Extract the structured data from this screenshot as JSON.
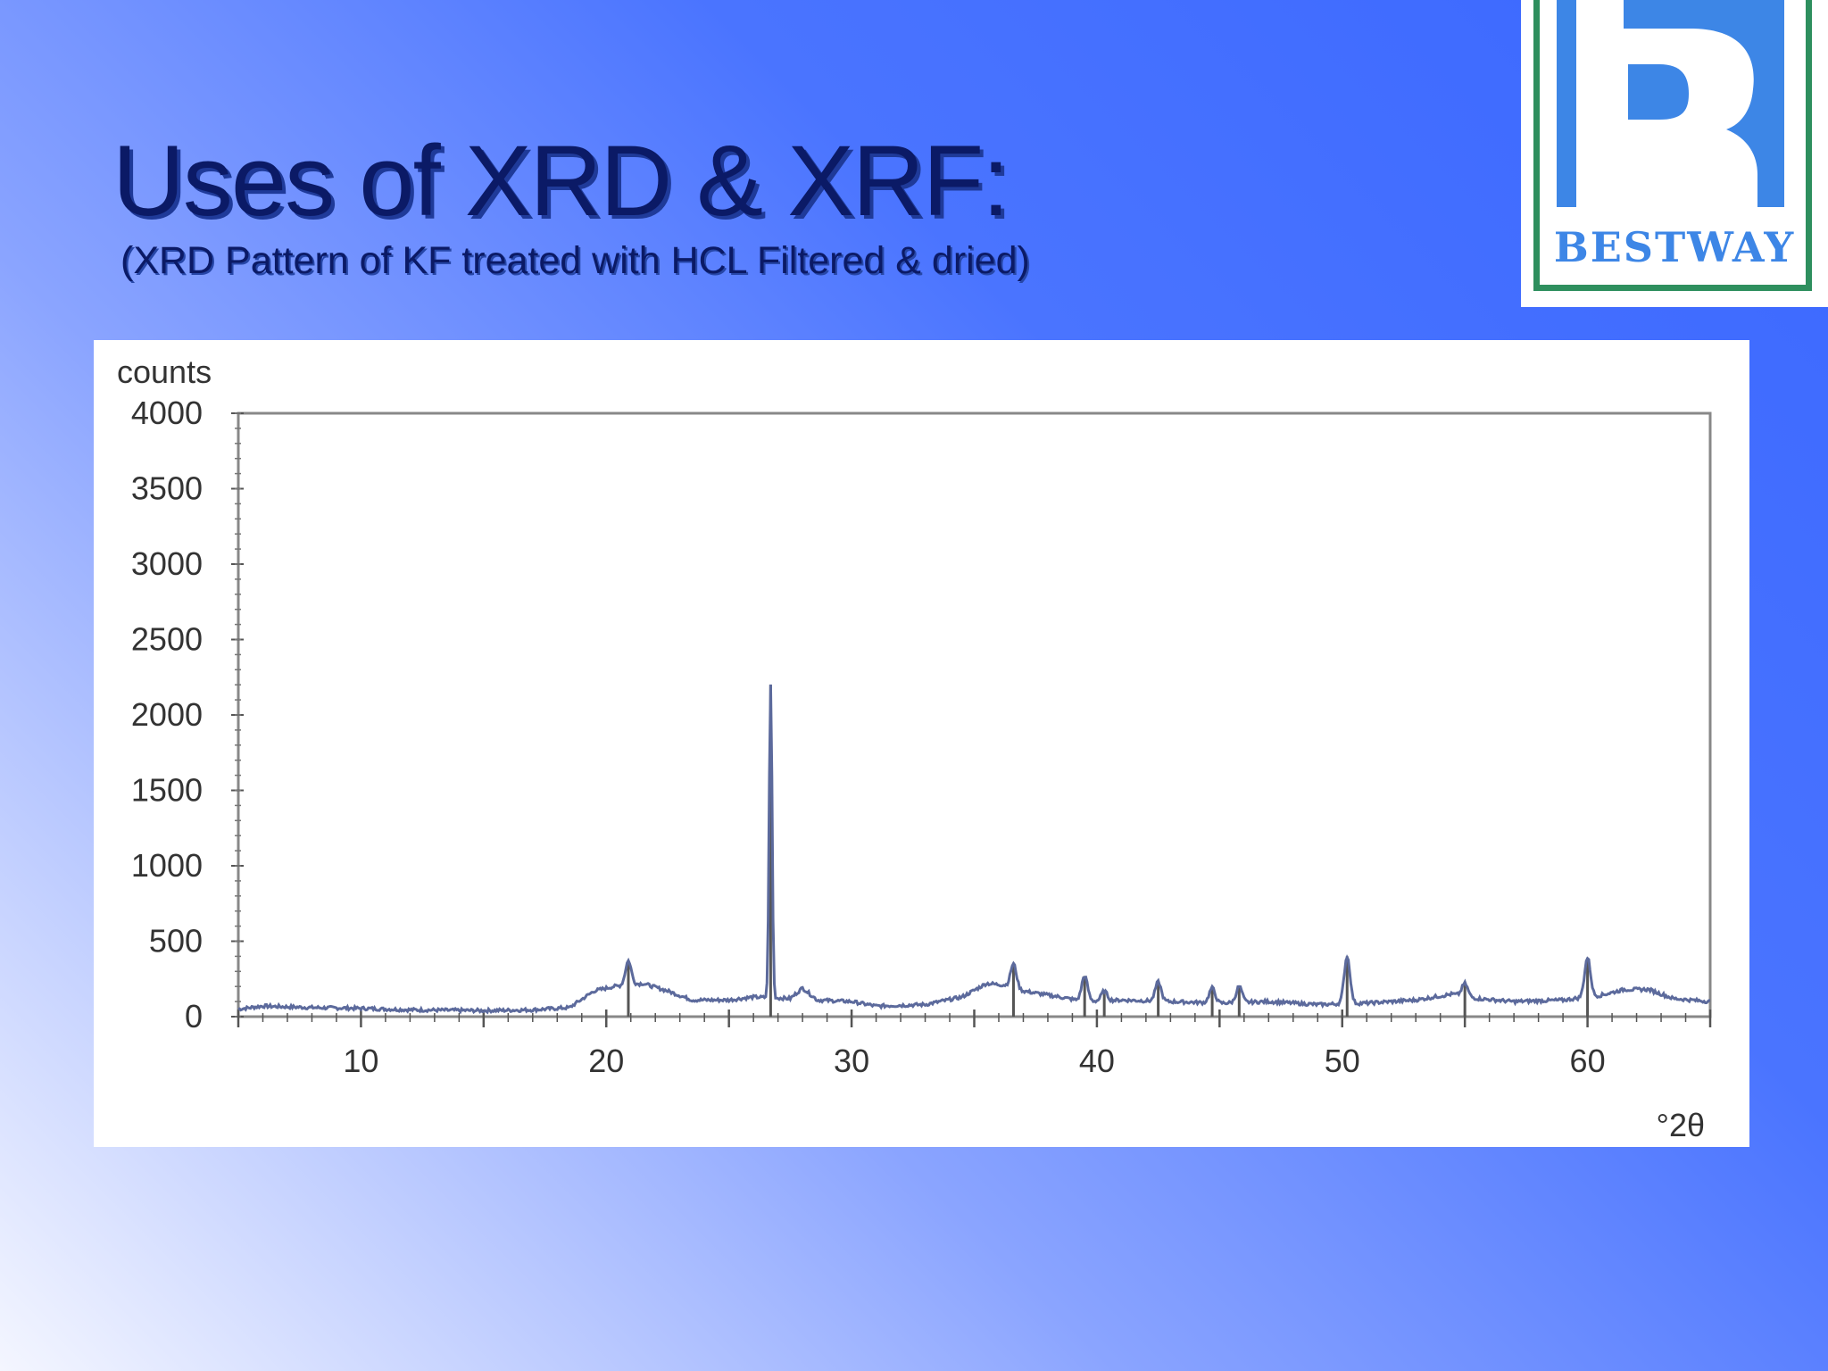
{
  "slide": {
    "title": "Uses of XRD & XRF:",
    "subtitle": "(XRD Pattern of KF treated with HCL Filtered & dried)"
  },
  "logo": {
    "text": "BESTWAY",
    "icon": "b-letter-logo"
  },
  "colors": {
    "title": "#0b1a66",
    "trace": "#5c6a9c",
    "logo_green": "#2e8f5e",
    "logo_blue": "#3d86e6"
  },
  "chart_data": {
    "type": "line",
    "title": "",
    "xlabel": "°2θ",
    "ylabel": "counts",
    "xlim": [
      5,
      65
    ],
    "ylim": [
      0,
      4000
    ],
    "x_ticks": [
      10,
      20,
      30,
      40,
      50,
      60
    ],
    "y_ticks": [
      0,
      500,
      1000,
      1500,
      2000,
      2500,
      3000,
      3500,
      4000
    ],
    "grid": false,
    "baseline": [
      [
        5,
        50
      ],
      [
        6,
        70
      ],
      [
        8,
        60
      ],
      [
        10,
        55
      ],
      [
        12,
        45
      ],
      [
        15,
        40
      ],
      [
        17,
        45
      ],
      [
        18.5,
        60
      ],
      [
        19.5,
        170
      ],
      [
        20.3,
        200
      ],
      [
        21.5,
        220
      ],
      [
        22.5,
        170
      ],
      [
        23.5,
        110
      ],
      [
        25,
        110
      ],
      [
        26,
        130
      ],
      [
        27.5,
        120
      ],
      [
        28,
        190
      ],
      [
        28.6,
        110
      ],
      [
        30,
        100
      ],
      [
        31,
        70
      ],
      [
        33,
        80
      ],
      [
        34.5,
        130
      ],
      [
        35.5,
        220
      ],
      [
        36.2,
        210
      ],
      [
        37,
        170
      ],
      [
        38.5,
        130
      ],
      [
        39.5,
        100
      ],
      [
        41,
        110
      ],
      [
        43,
        100
      ],
      [
        45,
        90
      ],
      [
        47,
        100
      ],
      [
        49,
        80
      ],
      [
        51,
        90
      ],
      [
        53,
        110
      ],
      [
        54.5,
        150
      ],
      [
        55.5,
        120
      ],
      [
        57,
        100
      ],
      [
        59,
        110
      ],
      [
        60.5,
        140
      ],
      [
        61.5,
        180
      ],
      [
        62.5,
        180
      ],
      [
        63.5,
        120
      ],
      [
        65,
        100
      ]
    ],
    "peaks": [
      {
        "x": 20.9,
        "y": 370
      },
      {
        "x": 26.7,
        "y": 2200
      },
      {
        "x": 36.6,
        "y": 350
      },
      {
        "x": 39.5,
        "y": 270
      },
      {
        "x": 40.3,
        "y": 170
      },
      {
        "x": 42.5,
        "y": 230
      },
      {
        "x": 44.7,
        "y": 190
      },
      {
        "x": 45.8,
        "y": 200
      },
      {
        "x": 50.2,
        "y": 400
      },
      {
        "x": 55.0,
        "y": 220
      },
      {
        "x": 60.0,
        "y": 390
      }
    ]
  }
}
